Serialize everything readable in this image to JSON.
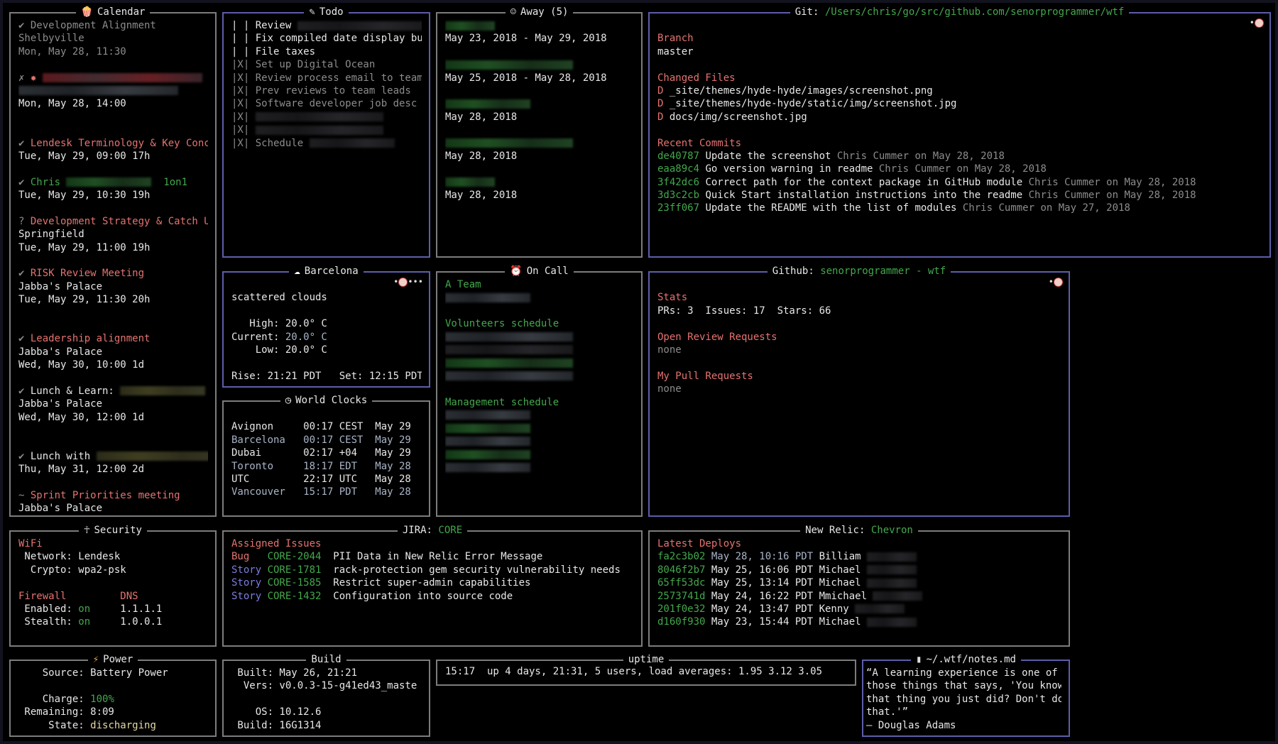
{
  "colors": {
    "accent_border": "#5d5daa",
    "border": "#7c7c7c",
    "heading": "#e5736f",
    "highlight": "#43a84c",
    "story": "#7c7ce0"
  },
  "panels": {
    "calendar": {
      "focus": false,
      "icon": "popcorn-icon",
      "title": [
        [
          "Calendar",
          "w"
        ]
      ],
      "lines": [
        [
          [
            "✔ Development Alignment",
            "g"
          ]
        ],
        [
          [
            "Shelbyville",
            "g"
          ]
        ],
        [
          [
            "Mon, May 28, 11:30",
            "g"
          ]
        ],
        [],
        [
          [
            "✗ ",
            "g"
          ],
          [
            "✸ ",
            "r"
          ],
          [
            "",
            "rd xl red"
          ]
        ],
        [
          [
            "",
            "rd xl grey"
          ]
        ],
        [
          [
            "Mon, May 28, 14:00",
            "w"
          ]
        ],
        [],
        [],
        [
          [
            "✔ ",
            "g"
          ],
          [
            "Lendesk Terminology & Key Conc",
            "r"
          ]
        ],
        [
          [
            "Tue, May 29, 09:00 17h",
            "w"
          ]
        ],
        [],
        [
          [
            "✔ ",
            "g"
          ],
          [
            "Chris ",
            "gr"
          ],
          [
            "",
            "rd m green"
          ],
          [
            "  1on1",
            "gr"
          ]
        ],
        [
          [
            "Tue, May 29, 10:30 19h",
            "w"
          ]
        ],
        [],
        [
          [
            "? ",
            "g"
          ],
          [
            "Development Strategy & Catch U",
            "r"
          ]
        ],
        [
          [
            "Springfield",
            "w"
          ]
        ],
        [
          [
            "Tue, May 29, 11:00 19h",
            "w"
          ]
        ],
        [],
        [
          [
            "✔ ",
            "g"
          ],
          [
            "RISK Review Meeting",
            "r"
          ]
        ],
        [
          [
            "Jabba's Palace",
            "w"
          ]
        ],
        [
          [
            "Tue, May 29, 11:30 20h",
            "w"
          ]
        ],
        [],
        [],
        [
          [
            "✔ ",
            "g"
          ],
          [
            "Leadership alignment",
            "r"
          ]
        ],
        [
          [
            "Jabba's Palace",
            "w"
          ]
        ],
        [
          [
            "Wed, May 30, 10:00 1d",
            "w"
          ]
        ],
        [],
        [
          [
            "✔ ",
            "g"
          ],
          [
            "Lunch & Learn: ",
            "w"
          ],
          [
            "",
            "rd m yellow"
          ]
        ],
        [
          [
            "Jabba's Palace",
            "w"
          ]
        ],
        [
          [
            "Wed, May 30, 12:00 1d",
            "w"
          ]
        ],
        [],
        [],
        [
          [
            "✔ ",
            "g"
          ],
          [
            "Lunch with ",
            "w"
          ],
          [
            "",
            "rd l yellow"
          ]
        ],
        [
          [
            "Thu, May 31, 12:00 2d",
            "w"
          ]
        ],
        [],
        [
          [
            "~ ",
            "g"
          ],
          [
            "Sprint Priorities meeting",
            "r"
          ]
        ],
        [
          [
            "Jabba's Palace",
            "w"
          ]
        ]
      ]
    },
    "todo": {
      "focus": true,
      "icon": "memo-icon",
      "title": [
        [
          "Todo",
          "w"
        ]
      ],
      "lines": [
        [
          [
            "| | Review ",
            "w"
          ],
          [
            "",
            "rd l dark"
          ]
        ],
        [
          [
            "| | Fix compiled date display bug",
            "w"
          ]
        ],
        [
          [
            "| | File taxes",
            "w"
          ]
        ],
        [
          [
            "|X| Set up Digital Ocean",
            "g"
          ]
        ],
        [
          [
            "|X| Review process email to team",
            "g"
          ]
        ],
        [
          [
            "|X| Prev reviews to team leads",
            "g"
          ]
        ],
        [
          [
            "|X| Software developer job desc",
            "g"
          ]
        ],
        [
          [
            "|X| ",
            "g"
          ],
          [
            "",
            "rd l dark"
          ]
        ],
        [
          [
            "|X| ",
            "g"
          ],
          [
            "",
            "rd l dark"
          ]
        ],
        [
          [
            "|X| Schedule ",
            "g"
          ],
          [
            "",
            "rd m dark"
          ]
        ]
      ]
    },
    "away": {
      "focus": false,
      "icon": "alien-icon",
      "title": [
        [
          "Away (5)",
          "w"
        ]
      ],
      "lines": [
        [
          [
            "",
            "rd s green"
          ]
        ],
        [
          [
            "May 23, 2018 - May 29, 2018",
            "w"
          ]
        ],
        [],
        [
          [
            "",
            "rd l green"
          ]
        ],
        [
          [
            "May 25, 2018 - May 28, 2018",
            "w"
          ]
        ],
        [],
        [
          [
            "",
            "rd m green"
          ]
        ],
        [
          [
            "May 28, 2018",
            "w"
          ]
        ],
        [],
        [
          [
            "",
            "rd l green"
          ]
        ],
        [
          [
            "May 28, 2018",
            "w"
          ]
        ],
        [],
        [
          [
            "",
            "rd s green"
          ]
        ],
        [
          [
            "May 28, 2018",
            "w"
          ]
        ]
      ]
    },
    "git": {
      "focus": true,
      "corner": "clown-icon",
      "title": [
        [
          "Git: ",
          "w"
        ],
        [
          "/Users/chris/go/src/github.com/senorprogrammer/wtf",
          "gr"
        ]
      ],
      "lines": [
        [],
        [
          [
            "Branch",
            "r"
          ]
        ],
        [
          [
            "master",
            "w"
          ]
        ],
        [],
        [
          [
            "Changed Files",
            "r"
          ]
        ],
        [
          [
            "D ",
            "r"
          ],
          [
            "_site/themes/hyde-hyde/images/screenshot.png",
            "w"
          ]
        ],
        [
          [
            "D ",
            "r"
          ],
          [
            "_site/themes/hyde-hyde/static/img/screenshot.jpg",
            "w"
          ]
        ],
        [
          [
            "D ",
            "r"
          ],
          [
            "docs/img/screenshot.jpg",
            "w"
          ]
        ],
        [],
        [
          [
            "Recent Commits",
            "r"
          ]
        ],
        [
          [
            "de40787 ",
            "gr"
          ],
          [
            "Update the screenshot ",
            "w"
          ],
          [
            "Chris Cummer on May 28, 2018",
            "g"
          ]
        ],
        [
          [
            "eaa89c4 ",
            "gr"
          ],
          [
            "Go version warning in readme ",
            "w"
          ],
          [
            "Chris Cummer on May 28, 2018",
            "g"
          ]
        ],
        [
          [
            "3f42dc6 ",
            "gr"
          ],
          [
            "Correct path for the context package in GitHub module ",
            "w"
          ],
          [
            "Chris Cummer on May 28, 2018",
            "g"
          ]
        ],
        [
          [
            "3d3c2cb ",
            "gr"
          ],
          [
            "Quick Start installation instructions into the readme ",
            "w"
          ],
          [
            "Chris Cummer on May 28, 2018",
            "g"
          ]
        ],
        [
          [
            "23ff067 ",
            "gr"
          ],
          [
            "Update the README with the list of modules ",
            "w"
          ],
          [
            "Chris Cummer on May 27, 2018",
            "g"
          ]
        ]
      ]
    },
    "weather": {
      "focus": true,
      "corner": "clown-icon-pager",
      "icon": "cloud-icon",
      "title": [
        [
          "Barcelona",
          "w"
        ]
      ],
      "lines": [
        [],
        [
          [
            "scattered clouds",
            "w"
          ]
        ],
        [],
        [
          [
            "   High: ",
            "w"
          ],
          [
            "20.0° C",
            "w"
          ]
        ],
        [
          [
            "Current: ",
            "w"
          ],
          [
            "20.0° C",
            "lb"
          ]
        ],
        [
          [
            "    Low: ",
            "w"
          ],
          [
            "20.0° C",
            "w"
          ]
        ],
        [],
        [
          [
            "Rise: 21:21 PDT   Set: 12:15 PDT",
            "w"
          ]
        ]
      ]
    },
    "clocks": {
      "focus": false,
      "icon": "clock-icon",
      "title": [
        [
          "World Clocks",
          "w"
        ]
      ],
      "lines": [
        [],
        [
          [
            "Avignon     00:17 CEST  May 29",
            "w"
          ]
        ],
        [
          [
            "Barcelona   00:17 CEST  May 29",
            "lb"
          ]
        ],
        [
          [
            "Dubai       02:17 +04   May 29",
            "w"
          ]
        ],
        [
          [
            "Toronto     18:17 EDT   May 28",
            "lb"
          ]
        ],
        [
          [
            "UTC         22:17 UTC   May 28",
            "w"
          ]
        ],
        [
          [
            "Vancouver   15:17 PDT   May 28",
            "lb"
          ]
        ]
      ]
    },
    "oncall": {
      "focus": false,
      "icon": "alarm-clock-icon",
      "title": [
        [
          "On Call",
          "w"
        ]
      ],
      "lines": [
        [
          [
            "A Team",
            "gr"
          ]
        ],
        [
          [
            "",
            "rd m grey"
          ]
        ],
        [],
        [
          [
            "Volunteers schedule",
            "gr"
          ]
        ],
        [
          [
            "",
            "rd l grey"
          ]
        ],
        [
          [
            "",
            "rd l dark"
          ]
        ],
        [
          [
            "",
            "rd l green"
          ]
        ],
        [
          [
            "",
            "rd l grey"
          ]
        ],
        [],
        [
          [
            "Management schedule",
            "gr"
          ]
        ],
        [
          [
            "",
            "rd m grey"
          ]
        ],
        [
          [
            "",
            "rd m green"
          ]
        ],
        [
          [
            "",
            "rd m grey"
          ]
        ],
        [
          [
            "",
            "rd m green"
          ]
        ],
        [
          [
            "",
            "rd m grey"
          ]
        ]
      ]
    },
    "github": {
      "focus": true,
      "corner": "clown-icon",
      "title": [
        [
          "Github: ",
          "w"
        ],
        [
          "senorprogrammer - wtf",
          "gr"
        ]
      ],
      "lines": [
        [],
        [
          [
            "Stats",
            "r"
          ]
        ],
        [
          [
            "PRs: 3  Issues: 17  Stars: 66",
            "w"
          ]
        ],
        [],
        [
          [
            "Open Review Requests",
            "r"
          ]
        ],
        [
          [
            "none",
            "g"
          ]
        ],
        [],
        [
          [
            "My Pull Requests",
            "r"
          ]
        ],
        [
          [
            "none",
            "g"
          ]
        ]
      ]
    },
    "security": {
      "focus": false,
      "icon": "dancer-icon",
      "title": [
        [
          "Security",
          "w"
        ]
      ],
      "lines": [
        [
          [
            "WiFi",
            "r"
          ]
        ],
        [
          [
            " Network: Lendesk",
            "w"
          ]
        ],
        [
          [
            "  Crypto: wpa2-psk",
            "w"
          ]
        ],
        [],
        [
          [
            "Firewall         ",
            "r"
          ],
          [
            "DNS",
            "r"
          ]
        ],
        [
          [
            " Enabled: ",
            "w"
          ],
          [
            "on",
            "gr"
          ],
          [
            "     1.1.1.1",
            "w"
          ]
        ],
        [
          [
            " Stealth: ",
            "w"
          ],
          [
            "on",
            "gr"
          ],
          [
            "     1.0.0.1",
            "w"
          ]
        ]
      ]
    },
    "jira": {
      "focus": false,
      "title": [
        [
          "JIRA: ",
          "w"
        ],
        [
          "CORE",
          "gr"
        ]
      ],
      "lines": [
        [
          [
            "Assigned Issues",
            "r"
          ]
        ],
        [
          [
            "Bug   ",
            "r"
          ],
          [
            "CORE-2044  ",
            "gr"
          ],
          [
            "PII Data in New Relic Error Message",
            "w"
          ]
        ],
        [
          [
            "Story ",
            "b"
          ],
          [
            "CORE-1781  ",
            "gr"
          ],
          [
            "rack-protection gem security vulnerability needs",
            "w"
          ]
        ],
        [
          [
            "Story ",
            "b"
          ],
          [
            "CORE-1585  ",
            "gr"
          ],
          [
            "Restrict super-admin capabilities",
            "w"
          ]
        ],
        [
          [
            "Story ",
            "b"
          ],
          [
            "CORE-1432  ",
            "gr"
          ],
          [
            "Configuration into source code",
            "w"
          ]
        ]
      ]
    },
    "newrelic": {
      "focus": false,
      "title": [
        [
          "New Relic: ",
          "w"
        ],
        [
          "Chevron",
          "gr"
        ]
      ],
      "lines": [
        [
          [
            "Latest Deploys",
            "r"
          ]
        ],
        [
          [
            "fa2c3b02 ",
            "gr"
          ],
          [
            "May 28, 10:16 PDT ",
            "lb"
          ],
          [
            "Billiam ",
            "w"
          ],
          [
            "",
            "rd s dark"
          ]
        ],
        [
          [
            "8046f2b7 ",
            "gr"
          ],
          [
            "May 25, 16:06 PDT ",
            "w"
          ],
          [
            "Michael ",
            "w"
          ],
          [
            "",
            "rd s dark"
          ]
        ],
        [
          [
            "65ff53dc ",
            "gr"
          ],
          [
            "May 25, 13:14 PDT ",
            "w"
          ],
          [
            "Michael ",
            "w"
          ],
          [
            "",
            "rd s dark"
          ]
        ],
        [
          [
            "2573741d ",
            "gr"
          ],
          [
            "May 24, 16:22 PDT ",
            "w"
          ],
          [
            "Mmichael ",
            "w"
          ],
          [
            "",
            "rd s dark"
          ]
        ],
        [
          [
            "201f0e32 ",
            "gr"
          ],
          [
            "May 24, 13:47 PDT ",
            "w"
          ],
          [
            "Kenny ",
            "w"
          ],
          [
            "",
            "rd s dark"
          ]
        ],
        [
          [
            "d160f930 ",
            "gr"
          ],
          [
            "May 23, 15:44 PDT ",
            "w"
          ],
          [
            "Michael ",
            "w"
          ],
          [
            "",
            "rd s dark"
          ]
        ]
      ]
    },
    "power": {
      "focus": false,
      "icon": "lightning-icon",
      "title": [
        [
          "Power",
          "w"
        ]
      ],
      "lines": [
        [
          [
            "    Source: Battery Power",
            "w"
          ]
        ],
        [],
        [
          [
            "    Charge: ",
            "w"
          ],
          [
            "100%",
            "gr"
          ]
        ],
        [
          [
            " Remaining: 8:09",
            "w"
          ]
        ],
        [
          [
            "     State: ",
            "w"
          ],
          [
            "discharging",
            "y"
          ]
        ]
      ]
    },
    "build": {
      "focus": false,
      "title": [
        [
          "Build",
          "w"
        ]
      ],
      "lines": [
        [
          [
            " Built: May 26, 21:21",
            "w"
          ]
        ],
        [
          [
            "  Vers: v0.0.3-15-g41ed43_maste",
            "w"
          ]
        ],
        [],
        [
          [
            "    OS: 10.12.6",
            "w"
          ]
        ],
        [
          [
            " Build: 16G1314",
            "w"
          ]
        ]
      ]
    },
    "uptime": {
      "focus": false,
      "title": [
        [
          "uptime",
          "w"
        ]
      ],
      "lines": [
        [
          [
            "15:17  up 4 days, 21:31, 5 users, load averages: 1.95 3.12 3.05",
            "w"
          ]
        ]
      ]
    },
    "notes": {
      "focus": true,
      "icon": "document-icon",
      "title": [
        [
          "~/.wtf/notes.md",
          "w"
        ]
      ],
      "lines": [
        [
          [
            "“A learning experience is one of",
            "w"
          ]
        ],
        [
          [
            "those things that says, 'You know",
            "w"
          ]
        ],
        [
          [
            "that thing you just did? Don't do",
            "w"
          ]
        ],
        [
          [
            "that.'”",
            "w"
          ]
        ],
        [
          [
            "– Douglas Adams",
            "w"
          ]
        ]
      ]
    }
  }
}
